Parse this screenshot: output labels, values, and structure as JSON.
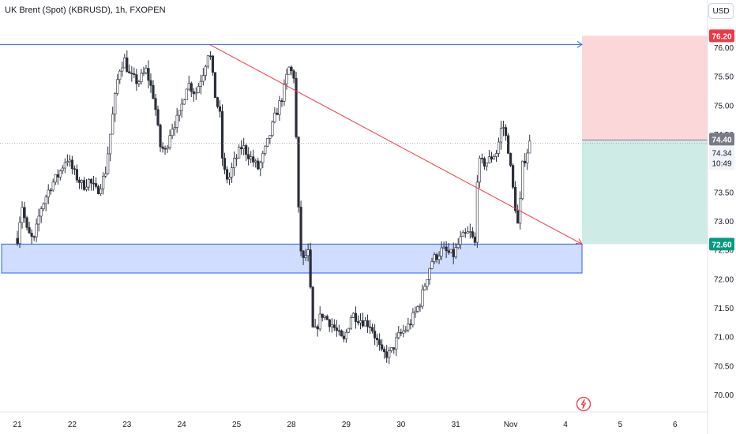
{
  "header": {
    "title": "UK Brent (Spot) (KBRUSD), 1h, FXOPEN",
    "currency": "USD"
  },
  "colors": {
    "up": "#26a69a",
    "down": "#2a2e39",
    "candle_body_up": "#ffffff",
    "resistance_line": "#2962ff",
    "support_zone_fill": "rgba(41,98,255,0.22)",
    "support_zone_stroke": "#2962ff",
    "trend_line": "#f23645",
    "stop_zone": "rgba(242,54,69,0.20)",
    "target_zone": "rgba(8,153,129,0.20)",
    "badge_red": "#f23645",
    "badge_green": "#089981",
    "badge_grey": "#787b86"
  },
  "chart_data": {
    "type": "candlestick",
    "symbol": "UK Brent (Spot) (KBRUSD)",
    "timeframe": "1h",
    "source": "FXOPEN",
    "y_ticks": [
      "76.00",
      "75.50",
      "75.00",
      "74.50",
      "74.00",
      "73.50",
      "73.00",
      "72.50",
      "72.00",
      "71.50",
      "71.00",
      "70.50",
      "70.00"
    ],
    "x_ticks": [
      "21",
      "22",
      "23",
      "24",
      "25",
      "28",
      "29",
      "30",
      "31",
      "Nov",
      "4",
      "5",
      "6"
    ],
    "ylim": [
      69.8,
      76.55
    ],
    "price_labels": {
      "stop": "76.20",
      "entry": "74.40",
      "current": "74.34",
      "countdown": "10:49",
      "target": "72.60"
    },
    "drawings": {
      "resistance_level": 76.05,
      "support_zone": [
        72.1,
        72.6
      ],
      "trend_line_start": {
        "x": "24",
        "y": 76.05
      },
      "trend_line_end": {
        "x": "4",
        "y": 72.6
      },
      "position_entry": 74.4,
      "position_stop": 76.2,
      "position_target": 72.6
    },
    "waypoints": [
      {
        "d": 0.0,
        "p": 72.7
      },
      {
        "d": 0.08,
        "p": 73.3
      },
      {
        "d": 0.18,
        "p": 72.8
      },
      {
        "d": 0.3,
        "p": 72.65
      },
      {
        "d": 0.42,
        "p": 73.2
      },
      {
        "d": 0.6,
        "p": 73.6
      },
      {
        "d": 0.75,
        "p": 73.8
      },
      {
        "d": 0.9,
        "p": 74.1
      },
      {
        "d": 1.05,
        "p": 73.8
      },
      {
        "d": 1.2,
        "p": 73.6
      },
      {
        "d": 1.3,
        "p": 73.7
      },
      {
        "d": 1.45,
        "p": 73.5
      },
      {
        "d": 1.6,
        "p": 73.8
      },
      {
        "d": 1.75,
        "p": 74.9
      },
      {
        "d": 1.85,
        "p": 75.6
      },
      {
        "d": 1.95,
        "p": 75.8
      },
      {
        "d": 2.05,
        "p": 75.5
      },
      {
        "d": 2.2,
        "p": 75.4
      },
      {
        "d": 2.35,
        "p": 75.6
      },
      {
        "d": 2.5,
        "p": 75.1
      },
      {
        "d": 2.6,
        "p": 74.3
      },
      {
        "d": 2.7,
        "p": 74.2
      },
      {
        "d": 2.8,
        "p": 74.6
      },
      {
        "d": 2.95,
        "p": 74.8
      },
      {
        "d": 3.1,
        "p": 75.4
      },
      {
        "d": 3.25,
        "p": 75.2
      },
      {
        "d": 3.4,
        "p": 75.6
      },
      {
        "d": 3.5,
        "p": 76.0
      },
      {
        "d": 3.6,
        "p": 75.2
      },
      {
        "d": 3.7,
        "p": 74.8
      },
      {
        "d": 3.75,
        "p": 73.9
      },
      {
        "d": 3.85,
        "p": 73.7
      },
      {
        "d": 3.95,
        "p": 74.0
      },
      {
        "d": 4.1,
        "p": 74.3
      },
      {
        "d": 4.25,
        "p": 74.1
      },
      {
        "d": 4.4,
        "p": 73.9
      },
      {
        "d": 4.55,
        "p": 74.3
      },
      {
        "d": 4.7,
        "p": 74.8
      },
      {
        "d": 4.85,
        "p": 75.2
      },
      {
        "d": 4.95,
        "p": 75.65
      },
      {
        "d": 5.05,
        "p": 75.5
      },
      {
        "d": 5.15,
        "p": 72.6
      },
      {
        "d": 5.22,
        "p": 72.3
      },
      {
        "d": 5.3,
        "p": 72.5
      },
      {
        "d": 5.4,
        "p": 71.0
      },
      {
        "d": 5.55,
        "p": 71.4
      },
      {
        "d": 5.75,
        "p": 71.2
      },
      {
        "d": 5.95,
        "p": 70.9
      },
      {
        "d": 6.1,
        "p": 71.4
      },
      {
        "d": 6.25,
        "p": 71.3
      },
      {
        "d": 6.45,
        "p": 71.2
      },
      {
        "d": 6.65,
        "p": 70.7
      },
      {
        "d": 6.8,
        "p": 70.7
      },
      {
        "d": 6.95,
        "p": 71.0
      },
      {
        "d": 7.15,
        "p": 71.2
      },
      {
        "d": 7.35,
        "p": 71.6
      },
      {
        "d": 7.55,
        "p": 72.3
      },
      {
        "d": 7.75,
        "p": 72.5
      },
      {
        "d": 7.95,
        "p": 72.4
      },
      {
        "d": 8.1,
        "p": 72.7
      },
      {
        "d": 8.25,
        "p": 72.8
      },
      {
        "d": 8.35,
        "p": 72.6
      },
      {
        "d": 8.4,
        "p": 74.0
      },
      {
        "d": 8.55,
        "p": 74.0
      },
      {
        "d": 8.75,
        "p": 74.2
      },
      {
        "d": 8.85,
        "p": 74.7
      },
      {
        "d": 8.95,
        "p": 74.3
      },
      {
        "d": 9.05,
        "p": 73.5
      },
      {
        "d": 9.15,
        "p": 72.8
      },
      {
        "d": 9.2,
        "p": 73.9
      },
      {
        "d": 9.3,
        "p": 74.2
      },
      {
        "d": 9.35,
        "p": 74.35
      }
    ]
  }
}
